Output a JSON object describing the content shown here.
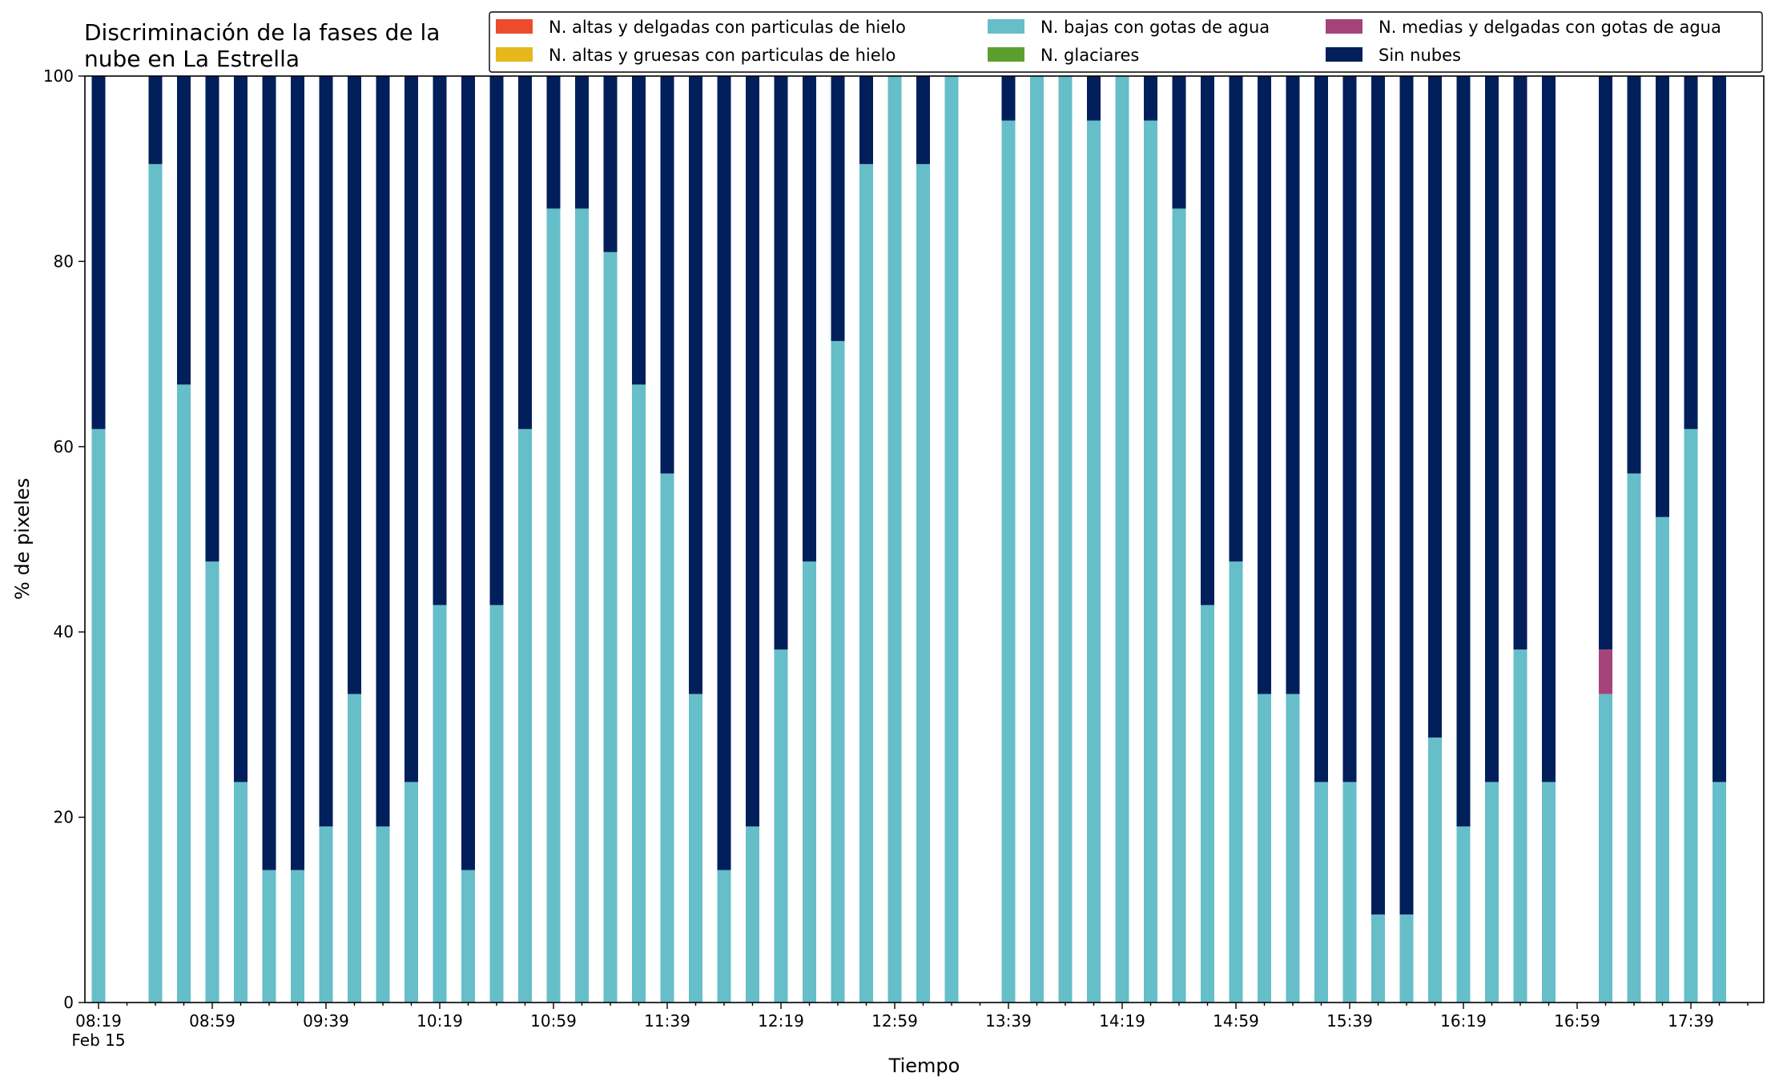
{
  "chart_data": {
    "type": "bar",
    "stacked": true,
    "title_lines": [
      "Discriminación de la fases de la",
      "nube en La Estrella"
    ],
    "xlabel": "Tiempo",
    "ylabel": "% de pixeles",
    "ylim": [
      0,
      100
    ],
    "yticks": [
      0,
      20,
      40,
      60,
      80,
      100
    ],
    "grid": false,
    "legend_position": "top-right",
    "x_start": "08:19",
    "x_step_minutes": 10,
    "x_count": 59,
    "xtick_labels": [
      "08:19",
      "08:59",
      "09:39",
      "10:19",
      "10:59",
      "11:39",
      "12:19",
      "12:59",
      "13:39",
      "14:19",
      "14:59",
      "15:39",
      "16:19",
      "16:59",
      "17:39"
    ],
    "xtick_label_indices": [
      0,
      4,
      8,
      12,
      16,
      20,
      24,
      28,
      32,
      36,
      40,
      44,
      48,
      52,
      56
    ],
    "date_label": "Feb 15",
    "series": [
      {
        "name": "N. altas y delgadas con particulas de hielo",
        "color": "#ed4b2c",
        "values": [
          0,
          null,
          0,
          0,
          0,
          0,
          0,
          0,
          0,
          0,
          0,
          0,
          0,
          0,
          0,
          0,
          0,
          0,
          0,
          0,
          0,
          0,
          0,
          0,
          0,
          0,
          0,
          0,
          0,
          0,
          0,
          null,
          0,
          0,
          0,
          0,
          0,
          0,
          0,
          0,
          0,
          0,
          0,
          0,
          0,
          0,
          0,
          0,
          0,
          0,
          0,
          0,
          null,
          0,
          0,
          0,
          0,
          0,
          0
        ]
      },
      {
        "name": "N. altas y gruesas con particulas de hielo",
        "color": "#e5b81b",
        "values": [
          0,
          null,
          0,
          0,
          0,
          0,
          0,
          0,
          0,
          0,
          0,
          0,
          0,
          0,
          0,
          0,
          0,
          0,
          0,
          0,
          0,
          0,
          0,
          0,
          0,
          0,
          0,
          0,
          0,
          0,
          0,
          null,
          0,
          0,
          0,
          0,
          0,
          0,
          0,
          0,
          0,
          0,
          0,
          0,
          0,
          0,
          0,
          0,
          0,
          0,
          0,
          0,
          null,
          0,
          0,
          0,
          0,
          0,
          0
        ]
      },
      {
        "name": "N. bajas con gotas de agua",
        "color": "#66bec9",
        "values": [
          61.9,
          null,
          90.5,
          66.7,
          47.6,
          23.8,
          14.3,
          14.3,
          19.0,
          33.3,
          19.0,
          23.8,
          42.9,
          14.3,
          42.9,
          61.9,
          85.7,
          85.7,
          81.0,
          66.7,
          57.1,
          33.3,
          14.3,
          19.0,
          38.1,
          47.6,
          71.4,
          90.5,
          100,
          90.5,
          100,
          null,
          95.2,
          100,
          100,
          95.2,
          100,
          95.2,
          85.7,
          42.9,
          47.6,
          33.3,
          33.3,
          23.8,
          23.8,
          9.5,
          9.5,
          28.6,
          19.0,
          23.8,
          38.1,
          23.8,
          null,
          33.3,
          57.1,
          52.4,
          61.9,
          23.8,
          0
        ]
      },
      {
        "name": "N. glaciares",
        "color": "#5d9f2f",
        "values": [
          0,
          null,
          0,
          0,
          0,
          0,
          0,
          0,
          0,
          0,
          0,
          0,
          0,
          0,
          0,
          0,
          0,
          0,
          0,
          0,
          0,
          0,
          0,
          0,
          0,
          0,
          0,
          0,
          0,
          0,
          0,
          null,
          0,
          0,
          0,
          0,
          0,
          0,
          0,
          0,
          0,
          0,
          0,
          0,
          0,
          0,
          0,
          0,
          0,
          0,
          0,
          0,
          null,
          0,
          0,
          0,
          0,
          0,
          0
        ]
      },
      {
        "name": "N. medias y delgadas con gotas de agua",
        "color": "#a5447a",
        "values": [
          0,
          null,
          0,
          0,
          0,
          0,
          0,
          0,
          0,
          0,
          0,
          0,
          0,
          0,
          0,
          0,
          0,
          0,
          0,
          0,
          0,
          0,
          0,
          0,
          0,
          0,
          0,
          0,
          0,
          0,
          0,
          null,
          0,
          0,
          0,
          0,
          0,
          0,
          0,
          0,
          0,
          0,
          0,
          0,
          0,
          0,
          0,
          0,
          0,
          0,
          0,
          0,
          null,
          4.8,
          0,
          0,
          0,
          0,
          0
        ]
      },
      {
        "name": "Sin nubes",
        "color": "#011f5b",
        "values": [
          38.1,
          null,
          9.5,
          33.3,
          52.4,
          76.2,
          85.7,
          85.7,
          81.0,
          66.7,
          81.0,
          76.2,
          57.1,
          85.7,
          57.1,
          38.1,
          14.3,
          14.3,
          19.0,
          33.3,
          42.9,
          66.7,
          85.7,
          81.0,
          61.9,
          52.4,
          28.6,
          9.5,
          0,
          9.5,
          0,
          null,
          4.8,
          0,
          0,
          4.8,
          0,
          4.8,
          14.3,
          57.1,
          52.4,
          66.7,
          66.7,
          76.2,
          76.2,
          90.5,
          90.5,
          71.4,
          81.0,
          76.2,
          61.9,
          76.2,
          null,
          61.9,
          42.9,
          47.6,
          38.1,
          76.2,
          0
        ]
      }
    ]
  }
}
